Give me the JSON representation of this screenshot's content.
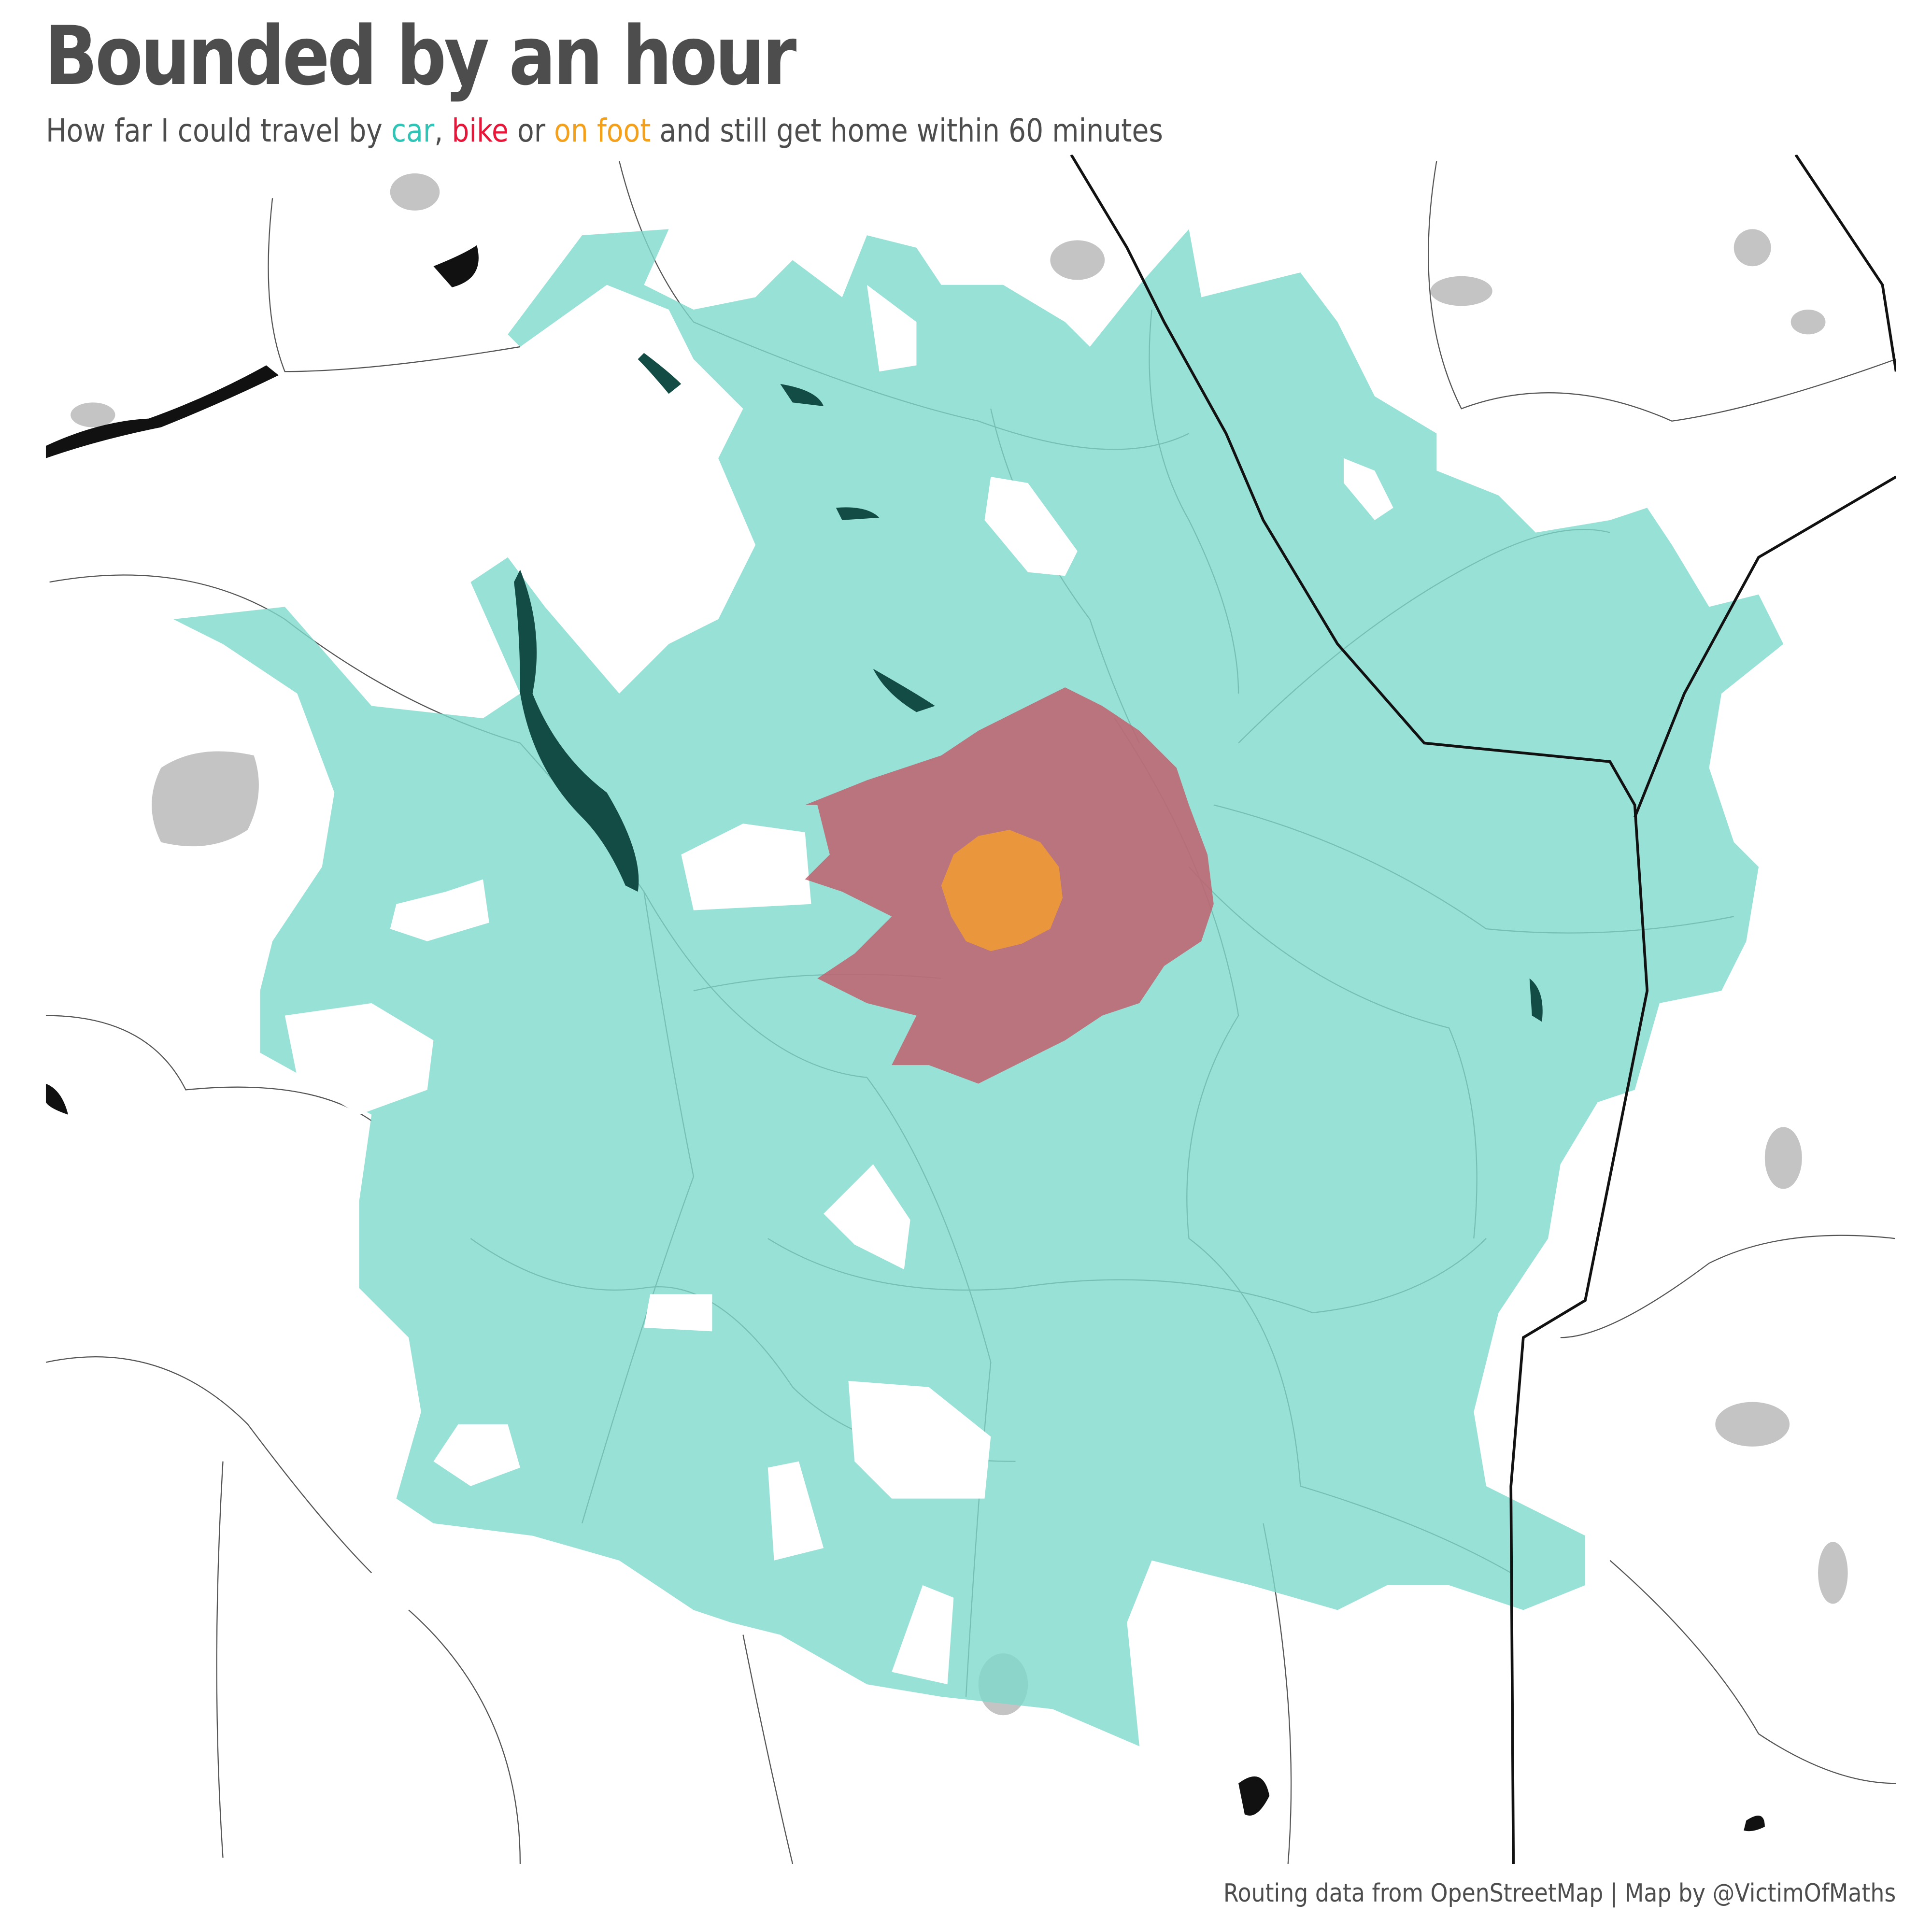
{
  "header": {
    "title": "Bounded by an hour",
    "subtitle": {
      "prefix": "How far I could travel by ",
      "car": "car",
      "sep1": ", ",
      "bike": "bike",
      "sep2": " or ",
      "foot": "on foot",
      "suffix": " and still get home within 60 minutes"
    }
  },
  "footer": {
    "credit": "Routing data from OpenStreetMap | Map by @VictimOfMaths"
  },
  "colors": {
    "title_text": "#4d4d4d",
    "car_label": "#2ec4b6",
    "bike_label": "#e8173a",
    "foot_label": "#f5a01a",
    "car_area": "#7dd9cd",
    "bike_area": "#c0606f",
    "foot_area": "#ef9a36",
    "motorway": "#111111",
    "road": "#555555",
    "urban": "#b5b5b5",
    "water": "#111111"
  },
  "map": {
    "isochrones": [
      {
        "mode": "car",
        "minutes": 60
      },
      {
        "mode": "bike",
        "minutes": 60
      },
      {
        "mode": "foot",
        "minutes": 60
      }
    ]
  }
}
